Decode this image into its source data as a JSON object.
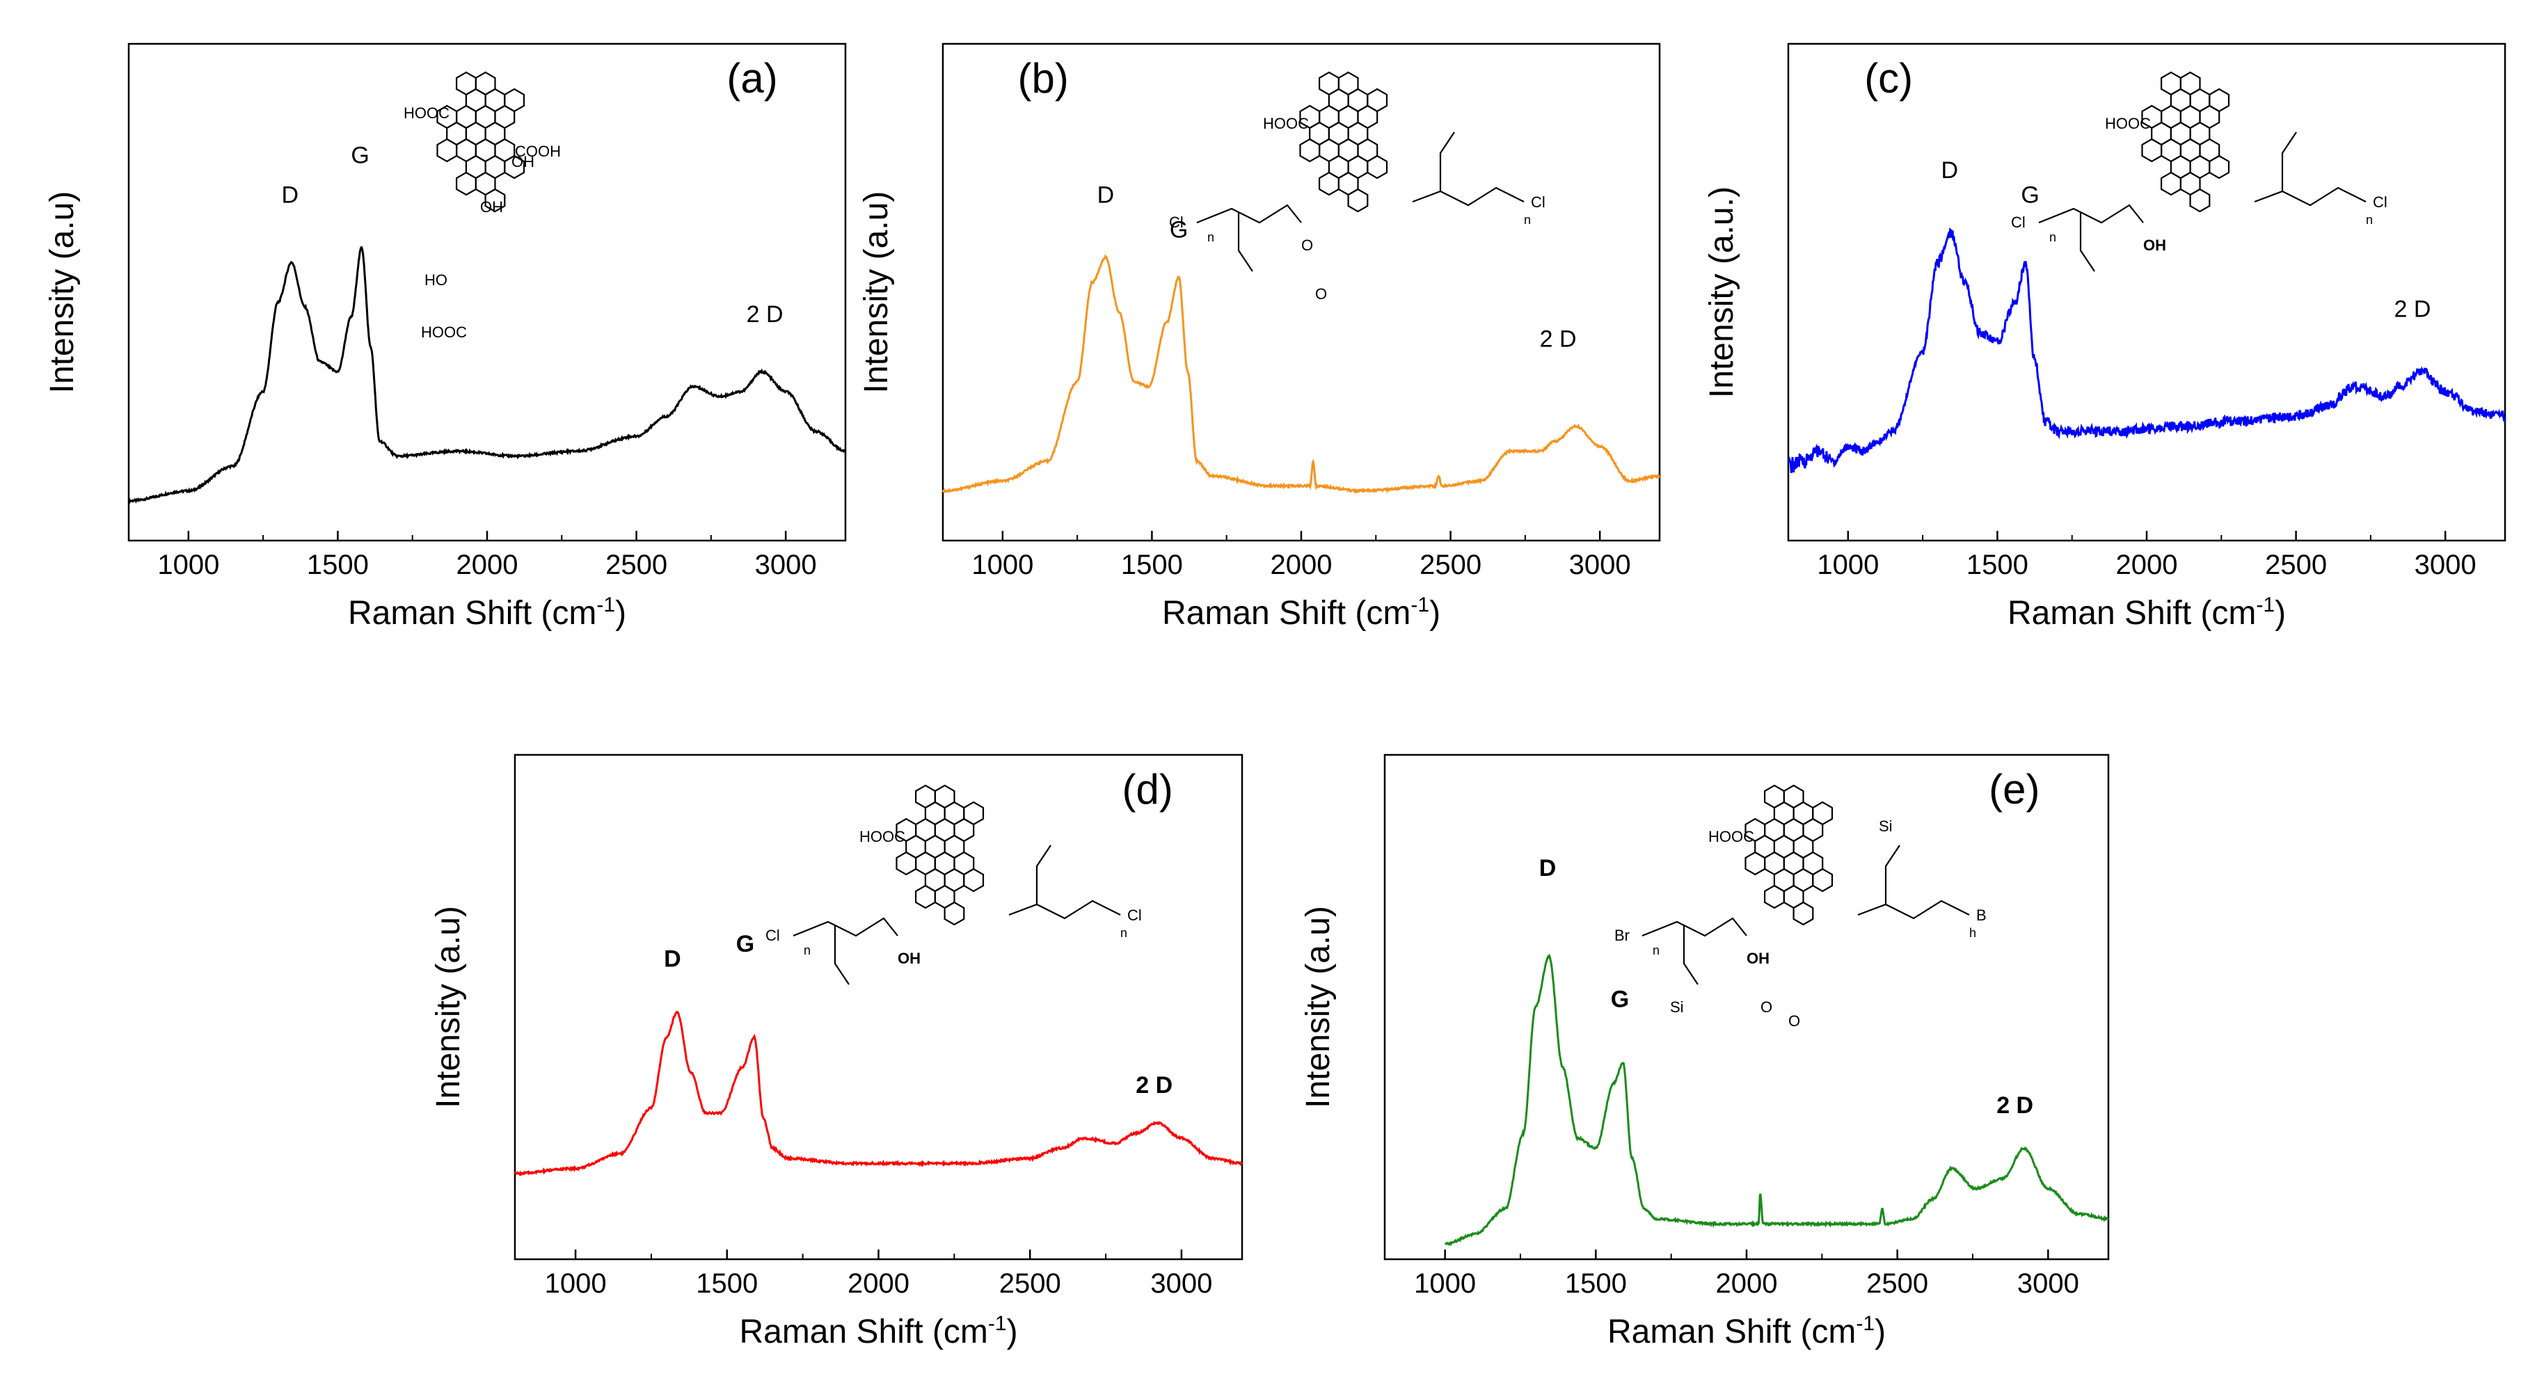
{
  "figure": {
    "description_ids": [
      "a",
      "b",
      "c",
      "d",
      "e"
    ]
  },
  "chart_data": [
    {
      "type": "line",
      "panel": "(a)",
      "color": "#000000",
      "xlabel": "Raman Shift (cm",
      "xlabel_sup": "-1",
      "xlabel_close": ")",
      "ylabel": "Intensity (a.u)",
      "xlim": [
        800,
        3200
      ],
      "ylim": [
        0,
        1
      ],
      "xticks": [
        1000,
        1500,
        2000,
        2500,
        3000
      ],
      "series": [
        {
          "name": "a",
          "x": [
            800,
            1000,
            1150,
            1250,
            1300,
            1345,
            1390,
            1440,
            1500,
            1545,
            1580,
            1610,
            1640,
            1700,
            1900,
            2100,
            2300,
            2500,
            2600,
            2690,
            2780,
            2850,
            2920,
            3000,
            3100,
            3200
          ],
          "y": [
            0.08,
            0.1,
            0.15,
            0.3,
            0.48,
            0.56,
            0.47,
            0.36,
            0.34,
            0.45,
            0.59,
            0.39,
            0.2,
            0.17,
            0.18,
            0.17,
            0.18,
            0.21,
            0.25,
            0.31,
            0.29,
            0.3,
            0.34,
            0.3,
            0.22,
            0.18
          ]
        }
      ],
      "peaks": [
        {
          "label": "D",
          "x": 1340,
          "y": 0.68,
          "bold": false
        },
        {
          "label": "G",
          "x": 1575,
          "y": 0.76,
          "bold": false
        },
        {
          "label": "2 D",
          "x": 2930,
          "y": 0.44,
          "bold": false
        }
      ],
      "molecule": {
        "groups": [
          "HOOC",
          "OH",
          "COOH",
          "OH",
          "HO",
          "HOOC"
        ],
        "chains": []
      }
    },
    {
      "type": "line",
      "panel": "(b)",
      "color": "#f7931e",
      "xlabel": "Raman Shift (cm",
      "xlabel_sup": "-1",
      "xlabel_close": ")",
      "ylabel": "Intensity (a.u)",
      "xlim": [
        800,
        3200
      ],
      "ylim": [
        0,
        1
      ],
      "xticks": [
        1000,
        1500,
        2000,
        2500,
        3000
      ],
      "series": [
        {
          "name": "b",
          "x": [
            800,
            1000,
            1150,
            1250,
            1300,
            1345,
            1390,
            1440,
            1490,
            1550,
            1590,
            1620,
            1650,
            1700,
            1900,
            2030,
            2040,
            2050,
            2200,
            2450,
            2460,
            2470,
            2600,
            2700,
            2800,
            2850,
            2920,
            3000,
            3100,
            3200
          ],
          "y": [
            0.1,
            0.12,
            0.16,
            0.32,
            0.52,
            0.57,
            0.46,
            0.32,
            0.31,
            0.44,
            0.53,
            0.34,
            0.16,
            0.13,
            0.11,
            0.11,
            0.16,
            0.11,
            0.1,
            0.11,
            0.13,
            0.11,
            0.12,
            0.18,
            0.18,
            0.2,
            0.23,
            0.19,
            0.12,
            0.13
          ]
        }
      ],
      "peaks": [
        {
          "label": "D",
          "x": 1345,
          "y": 0.68,
          "bold": false
        },
        {
          "label": "G",
          "x": 1590,
          "y": 0.61,
          "bold": false
        },
        {
          "label": "2 D",
          "x": 2860,
          "y": 0.39,
          "bold": false
        }
      ],
      "molecule": {
        "groups": [
          "HOOC",
          "O",
          "O"
        ],
        "chains": [
          "Cl",
          "n",
          "Cl",
          "n"
        ]
      }
    },
    {
      "type": "line",
      "panel": "(c)",
      "color": "#0000ff",
      "xlabel": "Raman Shift (cm",
      "xlabel_sup": "-1",
      "xlabel_close": ")",
      "ylabel": "Intensity (a.u.)",
      "xlim": [
        800,
        3200
      ],
      "ylim": [
        0,
        1
      ],
      "xticks": [
        1000,
        1500,
        2000,
        2500,
        3000
      ],
      "series": [
        {
          "name": "c",
          "x": [
            800,
            850,
            900,
            950,
            1000,
            1050,
            1100,
            1150,
            1250,
            1300,
            1345,
            1390,
            1440,
            1500,
            1560,
            1595,
            1625,
            1660,
            1700,
            1900,
            2100,
            2300,
            2500,
            2600,
            2700,
            2800,
            2850,
            2920,
            3000,
            3100,
            3200
          ],
          "y": [
            0.15,
            0.16,
            0.18,
            0.16,
            0.19,
            0.18,
            0.2,
            0.22,
            0.38,
            0.56,
            0.62,
            0.52,
            0.42,
            0.4,
            0.48,
            0.56,
            0.36,
            0.24,
            0.22,
            0.22,
            0.23,
            0.24,
            0.25,
            0.27,
            0.31,
            0.29,
            0.31,
            0.34,
            0.3,
            0.26,
            0.25
          ]
        }
      ],
      "peaks": [
        {
          "label": "D",
          "x": 1340,
          "y": 0.73,
          "bold": false
        },
        {
          "label": "G",
          "x": 1610,
          "y": 0.68,
          "bold": false
        },
        {
          "label": "2 D",
          "x": 2890,
          "y": 0.45,
          "bold": false
        }
      ],
      "molecule": {
        "groups": [
          "HOOC",
          "OH"
        ],
        "chains": [
          "Cl",
          "n",
          "Cl",
          "n"
        ]
      }
    },
    {
      "type": "line",
      "panel": "(d)",
      "color": "#ff0000",
      "xlabel": "Raman Shift (cm",
      "xlabel_sup": "-1",
      "xlabel_close": ")",
      "ylabel": "Intensity (a.u)",
      "xlim": [
        800,
        3200
      ],
      "ylim": [
        0,
        1
      ],
      "xticks": [
        1000,
        1500,
        2000,
        2500,
        3000
      ],
      "series": [
        {
          "name": "d",
          "x": [
            800,
            1000,
            1150,
            1250,
            1300,
            1335,
            1380,
            1430,
            1480,
            1550,
            1590,
            1620,
            1650,
            1700,
            1900,
            2100,
            2300,
            2500,
            2600,
            2680,
            2780,
            2850,
            2920,
            3000,
            3100,
            3200
          ],
          "y": [
            0.17,
            0.18,
            0.21,
            0.3,
            0.44,
            0.49,
            0.37,
            0.29,
            0.29,
            0.38,
            0.44,
            0.28,
            0.22,
            0.2,
            0.19,
            0.19,
            0.19,
            0.2,
            0.22,
            0.24,
            0.23,
            0.25,
            0.27,
            0.24,
            0.2,
            0.19
          ]
        }
      ],
      "peaks": [
        {
          "label": "D",
          "x": 1320,
          "y": 0.58,
          "bold": true
        },
        {
          "label": "G",
          "x": 1560,
          "y": 0.61,
          "bold": true
        },
        {
          "label": "2 D",
          "x": 2910,
          "y": 0.33,
          "bold": true
        }
      ],
      "molecule": {
        "groups": [
          "HOOC",
          "OH"
        ],
        "chains": [
          "Cl",
          "n",
          "Cl",
          "n"
        ]
      }
    },
    {
      "type": "line",
      "panel": "(e)",
      "color": "#1a8c1a",
      "xlabel": "Raman Shift (cm",
      "xlabel_sup": "-1",
      "xlabel_close": ")",
      "ylabel": "Intensity (a.u)",
      "xlim": [
        800,
        3200
      ],
      "ylim": [
        0,
        1
      ],
      "xticks": [
        1000,
        1500,
        2000,
        2500,
        3000
      ],
      "series": [
        {
          "name": "e",
          "x": [
            1000,
            1100,
            1200,
            1260,
            1300,
            1345,
            1390,
            1440,
            1500,
            1560,
            1590,
            1620,
            1660,
            1700,
            1900,
            2040,
            2045,
            2055,
            2200,
            2440,
            2450,
            2460,
            2550,
            2620,
            2680,
            2760,
            2850,
            2920,
            3000,
            3100,
            3200
          ],
          "y": [
            0.03,
            0.05,
            0.1,
            0.25,
            0.5,
            0.6,
            0.38,
            0.24,
            0.22,
            0.35,
            0.39,
            0.2,
            0.1,
            0.08,
            0.07,
            0.07,
            0.13,
            0.07,
            0.07,
            0.07,
            0.1,
            0.07,
            0.08,
            0.12,
            0.18,
            0.14,
            0.16,
            0.22,
            0.14,
            0.09,
            0.08
          ]
        }
      ],
      "peaks": [
        {
          "label": "D",
          "x": 1340,
          "y": 0.76,
          "bold": true
        },
        {
          "label": "G",
          "x": 1580,
          "y": 0.5,
          "bold": true
        },
        {
          "label": "2 D",
          "x": 2890,
          "y": 0.29,
          "bold": true
        }
      ],
      "molecule": {
        "groups": [
          "HOOC",
          "OH",
          "O",
          "O"
        ],
        "chains": [
          "Br",
          "n",
          "B",
          "h",
          "Si",
          "Si"
        ]
      }
    }
  ]
}
